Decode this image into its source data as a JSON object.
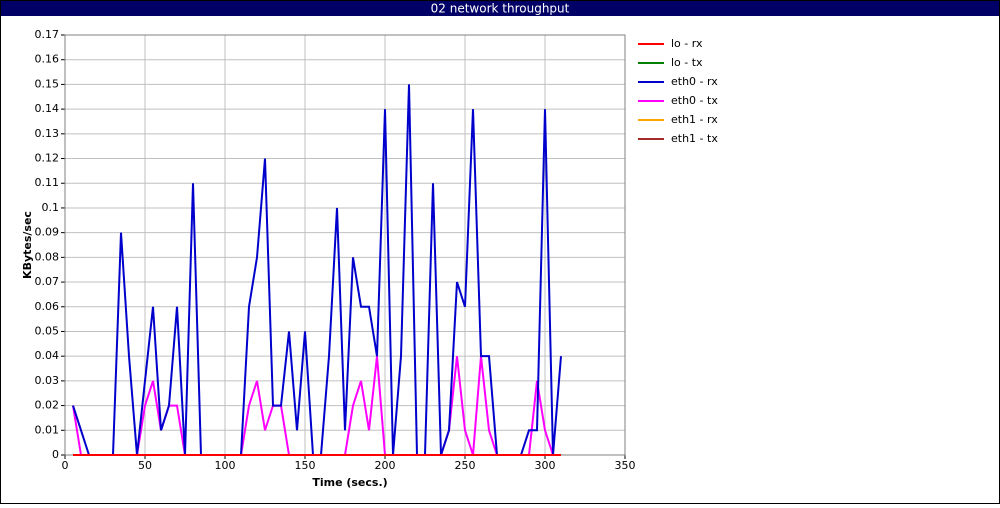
{
  "chart_data": {
    "type": "line",
    "title": "02 network throughput",
    "xlabel": "Time (secs.)",
    "ylabel": "KBytes/sec",
    "xlim": [
      0,
      350
    ],
    "xticks": [
      0,
      50,
      100,
      150,
      200,
      250,
      300,
      350
    ],
    "ylim": [
      0,
      0.17
    ],
    "yticks": [
      0,
      0.01,
      0.02,
      0.03,
      0.04,
      0.05,
      0.06,
      0.07,
      0.08,
      0.09,
      0.1,
      0.11,
      0.12,
      0.13,
      0.14,
      0.15,
      0.16,
      0.17
    ],
    "grid": true,
    "legend": "right",
    "x": [
      5,
      10,
      15,
      20,
      25,
      30,
      35,
      40,
      45,
      50,
      55,
      60,
      65,
      70,
      75,
      80,
      85,
      90,
      95,
      100,
      105,
      110,
      115,
      120,
      125,
      130,
      135,
      140,
      145,
      150,
      155,
      160,
      165,
      170,
      175,
      180,
      185,
      190,
      195,
      200,
      205,
      210,
      215,
      220,
      225,
      230,
      235,
      240,
      245,
      250,
      255,
      260,
      265,
      270,
      275,
      280,
      285,
      290,
      295,
      300,
      305,
      310
    ],
    "series": [
      {
        "name": "eth1 - tx",
        "color": "#a52a2a",
        "values": [
          0,
          0,
          0,
          0,
          0,
          0,
          0,
          0,
          0,
          0,
          0,
          0,
          0,
          0,
          0,
          0,
          0,
          0,
          0,
          0,
          0,
          0,
          0,
          0,
          0,
          0,
          0,
          0,
          0,
          0,
          0,
          0,
          0,
          0,
          0,
          0,
          0,
          0,
          0,
          0,
          0,
          0,
          0,
          0,
          0,
          0,
          0,
          0,
          0,
          0,
          0,
          0,
          0,
          0,
          0,
          0,
          0,
          0,
          0,
          0,
          0,
          0
        ]
      },
      {
        "name": "eth1 - rx",
        "color": "#ffa500",
        "values": [
          0,
          0,
          0,
          0,
          0,
          0,
          0,
          0,
          0,
          0,
          0,
          0,
          0,
          0,
          0,
          0,
          0,
          0,
          0,
          0,
          0,
          0,
          0,
          0,
          0,
          0,
          0,
          0,
          0,
          0,
          0,
          0,
          0,
          0,
          0,
          0,
          0,
          0,
          0,
          0,
          0,
          0,
          0,
          0,
          0,
          0,
          0,
          0,
          0,
          0,
          0,
          0,
          0,
          0,
          0,
          0,
          0,
          0,
          0,
          0,
          0,
          0
        ]
      },
      {
        "name": "eth0 - tx",
        "color": "#ff00ff",
        "values": [
          0.02,
          0,
          0,
          0,
          0,
          0,
          0,
          0,
          0,
          0.02,
          0.03,
          0.01,
          0.02,
          0.02,
          0,
          0,
          0,
          0,
          0,
          0,
          0,
          0,
          0.02,
          0.03,
          0.01,
          0.02,
          0.02,
          0,
          0,
          0,
          0,
          0,
          0,
          0,
          0,
          0.02,
          0.03,
          0.01,
          0.04,
          0,
          0,
          0,
          0,
          0,
          0,
          0,
          0,
          0.01,
          0.04,
          0.01,
          0,
          0.04,
          0.01,
          0,
          0,
          0,
          0,
          0,
          0.03,
          0.01,
          0,
          0
        ]
      },
      {
        "name": "eth0 - rx",
        "color": "#0000cc",
        "values": [
          0.02,
          0.01,
          0,
          0,
          0,
          0,
          0.09,
          0.04,
          0,
          0.03,
          0.06,
          0.01,
          0.02,
          0.06,
          0,
          0.11,
          0,
          0,
          0,
          0,
          0,
          0,
          0.06,
          0.08,
          0.12,
          0.02,
          0.02,
          0.05,
          0.01,
          0.05,
          0,
          0,
          0.04,
          0.1,
          0.01,
          0.08,
          0.06,
          0.06,
          0.04,
          0.14,
          0,
          0.04,
          0.15,
          0,
          0,
          0.11,
          0,
          0.01,
          0.07,
          0.06,
          0.14,
          0.04,
          0.04,
          0,
          0,
          0,
          0,
          0.01,
          0.01,
          0.14,
          0,
          0.04
        ]
      },
      {
        "name": "lo - tx",
        "color": "#008000",
        "values": [
          0,
          0,
          0,
          0,
          0,
          0,
          0,
          0,
          0,
          0,
          0,
          0,
          0,
          0,
          0,
          0,
          0,
          0,
          0,
          0,
          0,
          0,
          0,
          0,
          0,
          0,
          0,
          0,
          0,
          0,
          0,
          0,
          0,
          0,
          0,
          0,
          0,
          0,
          0,
          0,
          0,
          0,
          0,
          0,
          0,
          0,
          0,
          0,
          0,
          0,
          0,
          0,
          0,
          0,
          0,
          0,
          0,
          0,
          0,
          0,
          0,
          0
        ]
      },
      {
        "name": "lo - rx",
        "color": "#ff0000",
        "values": [
          0,
          0,
          0,
          0,
          0,
          0,
          0,
          0,
          0,
          0,
          0,
          0,
          0,
          0,
          0,
          0,
          0,
          0,
          0,
          0,
          0,
          0,
          0,
          0,
          0,
          0,
          0,
          0,
          0,
          0,
          0,
          0,
          0,
          0,
          0,
          0,
          0,
          0,
          0,
          0,
          0,
          0,
          0,
          0,
          0,
          0,
          0,
          0,
          0,
          0,
          0,
          0,
          0,
          0,
          0,
          0,
          0,
          0,
          0,
          0,
          0,
          0
        ]
      }
    ]
  }
}
